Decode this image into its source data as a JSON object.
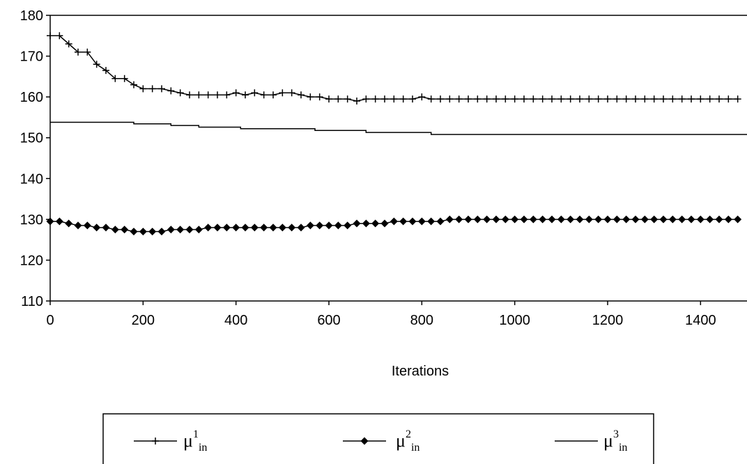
{
  "chart_data": {
    "type": "line",
    "title": "",
    "xlabel": "Iterations",
    "ylabel": "",
    "xlim": [
      0,
      1500
    ],
    "ylim": [
      110,
      180
    ],
    "xticks": [
      "0",
      "200",
      "400",
      "600",
      "800",
      "1000",
      "1200",
      "1400"
    ],
    "yticks": [
      "110",
      "120",
      "130",
      "140",
      "150",
      "160",
      "170",
      "180"
    ],
    "grid": false,
    "legend_position": "bottom",
    "series": [
      {
        "name": "μ",
        "sup": "1",
        "sub": "in",
        "marker": "plus",
        "x": [
          0,
          20,
          40,
          60,
          80,
          100,
          120,
          140,
          160,
          180,
          200,
          220,
          240,
          260,
          280,
          300,
          320,
          340,
          360,
          380,
          400,
          420,
          440,
          460,
          480,
          500,
          520,
          540,
          560,
          580,
          600,
          620,
          640,
          660,
          680,
          700,
          720,
          740,
          760,
          780,
          800,
          820,
          840,
          860,
          880,
          900,
          920,
          940,
          960,
          980,
          1000,
          1020,
          1040,
          1060,
          1080,
          1100,
          1120,
          1140,
          1160,
          1180,
          1200,
          1220,
          1240,
          1260,
          1280,
          1300,
          1320,
          1340,
          1360,
          1380,
          1400,
          1420,
          1440,
          1460,
          1480
        ],
        "y": [
          175,
          175,
          173,
          171,
          171,
          168,
          166.5,
          164.5,
          164.5,
          163,
          162,
          162,
          162,
          161.5,
          161,
          160.5,
          160.5,
          160.5,
          160.5,
          160.5,
          161,
          160.5,
          161,
          160.5,
          160.5,
          161,
          161,
          160.5,
          160,
          160,
          159.5,
          159.5,
          159.5,
          159,
          159.5,
          159.5,
          159.5,
          159.5,
          159.5,
          159.5,
          160,
          159.5,
          159.5,
          159.5,
          159.5,
          159.5,
          159.5,
          159.5,
          159.5,
          159.5,
          159.5,
          159.5,
          159.5,
          159.5,
          159.5,
          159.5,
          159.5,
          159.5,
          159.5,
          159.5,
          159.5,
          159.5,
          159.5,
          159.5,
          159.5,
          159.5,
          159.5,
          159.5,
          159.5,
          159.5,
          159.5,
          159.5,
          159.5,
          159.5,
          159.5
        ]
      },
      {
        "name": "μ",
        "sup": "2",
        "sub": "in",
        "marker": "diamond",
        "x": [
          0,
          20,
          40,
          60,
          80,
          100,
          120,
          140,
          160,
          180,
          200,
          220,
          240,
          260,
          280,
          300,
          320,
          340,
          360,
          380,
          400,
          420,
          440,
          460,
          480,
          500,
          520,
          540,
          560,
          580,
          600,
          620,
          640,
          660,
          680,
          700,
          720,
          740,
          760,
          780,
          800,
          820,
          840,
          860,
          880,
          900,
          920,
          940,
          960,
          980,
          1000,
          1020,
          1040,
          1060,
          1080,
          1100,
          1120,
          1140,
          1160,
          1180,
          1200,
          1220,
          1240,
          1260,
          1280,
          1300,
          1320,
          1340,
          1360,
          1380,
          1400,
          1420,
          1440,
          1460,
          1480
        ],
        "y": [
          129.5,
          129.5,
          129,
          128.5,
          128.5,
          128,
          128,
          127.5,
          127.5,
          127,
          127,
          127,
          127,
          127.5,
          127.5,
          127.5,
          127.5,
          128,
          128,
          128,
          128,
          128,
          128,
          128,
          128,
          128,
          128,
          128,
          128.5,
          128.5,
          128.5,
          128.5,
          128.5,
          129,
          129,
          129,
          129,
          129.5,
          129.5,
          129.5,
          129.5,
          129.5,
          129.5,
          130,
          130,
          130,
          130,
          130,
          130,
          130,
          130,
          130,
          130,
          130,
          130,
          130,
          130,
          130,
          130,
          130,
          130,
          130,
          130,
          130,
          130,
          130,
          130,
          130,
          130,
          130,
          130,
          130,
          130,
          130,
          130
        ]
      },
      {
        "name": "μ",
        "sup": "3",
        "sub": "in",
        "marker": "none",
        "step": true,
        "x": [
          0,
          180,
          180,
          260,
          260,
          320,
          320,
          410,
          410,
          570,
          570,
          680,
          680,
          820,
          820,
          1500
        ],
        "y": [
          153.8,
          153.8,
          153.4,
          153.4,
          153,
          153,
          152.6,
          152.6,
          152.2,
          152.2,
          151.8,
          151.8,
          151.3,
          151.3,
          150.8,
          150.8
        ]
      }
    ]
  }
}
